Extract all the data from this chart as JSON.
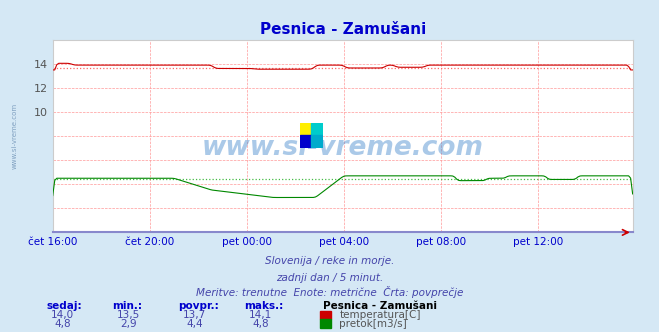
{
  "title": "Pesnica - Zamušani",
  "bg_color": "#d5e8f5",
  "plot_bg_color": "#ffffff",
  "grid_color": "#ff9999",
  "x_label_color": "#0000cc",
  "temp_color": "#cc0000",
  "flow_color": "#008800",
  "avg_line_color_temp": "#ff6666",
  "avg_line_color_flow": "#44bb44",
  "total_points": 288,
  "temp_avg": 13.7,
  "flow_avg": 4.4,
  "temp_min": 13.5,
  "temp_max": 14.1,
  "temp_current": 14.0,
  "flow_min": 2.9,
  "flow_max": 4.8,
  "flow_current": 4.8,
  "subtitle1": "Slovenija / reke in morje.",
  "subtitle2": "zadnji dan / 5 minut.",
  "subtitle3": "Meritve: trenutne  Enote: metrične  Črta: povprečje",
  "footer_label1": "sedaj:",
  "footer_label2": "min.:",
  "footer_label3": "povpr.:",
  "footer_label4": "maks.:",
  "footer_station": "Pesnica - Zamušani",
  "footer_temp_label": "temperatura[C]",
  "footer_flow_label": "pretok[m3/s]"
}
